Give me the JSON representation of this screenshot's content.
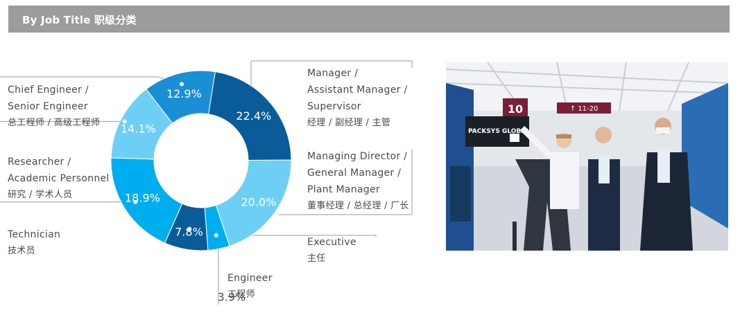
{
  "header": {
    "title": "By Job Title  职级分类"
  },
  "chart_data": {
    "type": "pie",
    "categories": [
      {
        "en": [
          "Manager /",
          "Assistant Manager /",
          "Supervisor"
        ],
        "cn": "经理 / 副经理 / 主管"
      },
      {
        "en": [
          "Managing Director /",
          "General Manager /",
          "Plant Manager"
        ],
        "cn": "董事经理 / 总经理 / 厂长"
      },
      {
        "en": [
          "Executive"
        ],
        "cn": "主任"
      },
      {
        "en": [
          "Engineer"
        ],
        "cn": "工程师"
      },
      {
        "en": [
          "Technician"
        ],
        "cn": "技术员"
      },
      {
        "en": [
          "Researcher /",
          "Academic Personnel"
        ],
        "cn": "研究 / 学术人员"
      },
      {
        "en": [
          "Chief Engineer /",
          "Senior Engineer"
        ],
        "cn": "总工程师 / 高级工程师"
      }
    ],
    "values": [
      22.4,
      20.0,
      3.9,
      7.8,
      18.9,
      14.1,
      12.9
    ],
    "value_labels": [
      "22.4%",
      "20.0%",
      "3.9%",
      "7.8%",
      "18.9%",
      "14.1%",
      "12.9%"
    ],
    "colors": [
      "#0a5c99",
      "#6ecff5",
      "#00aeef",
      "#0a5c99",
      "#00aeef",
      "#6ecff5",
      "#1a8fd6"
    ]
  },
  "photo": {
    "hall_number": "10",
    "direction_sign": "↑ 11-20",
    "booth_sign": "PACKSYS GLOBAL",
    "colors": {
      "ceiling": "#eef1f4",
      "carpet": "#d8dbe0",
      "wall": "#1f4f8f"
    }
  }
}
